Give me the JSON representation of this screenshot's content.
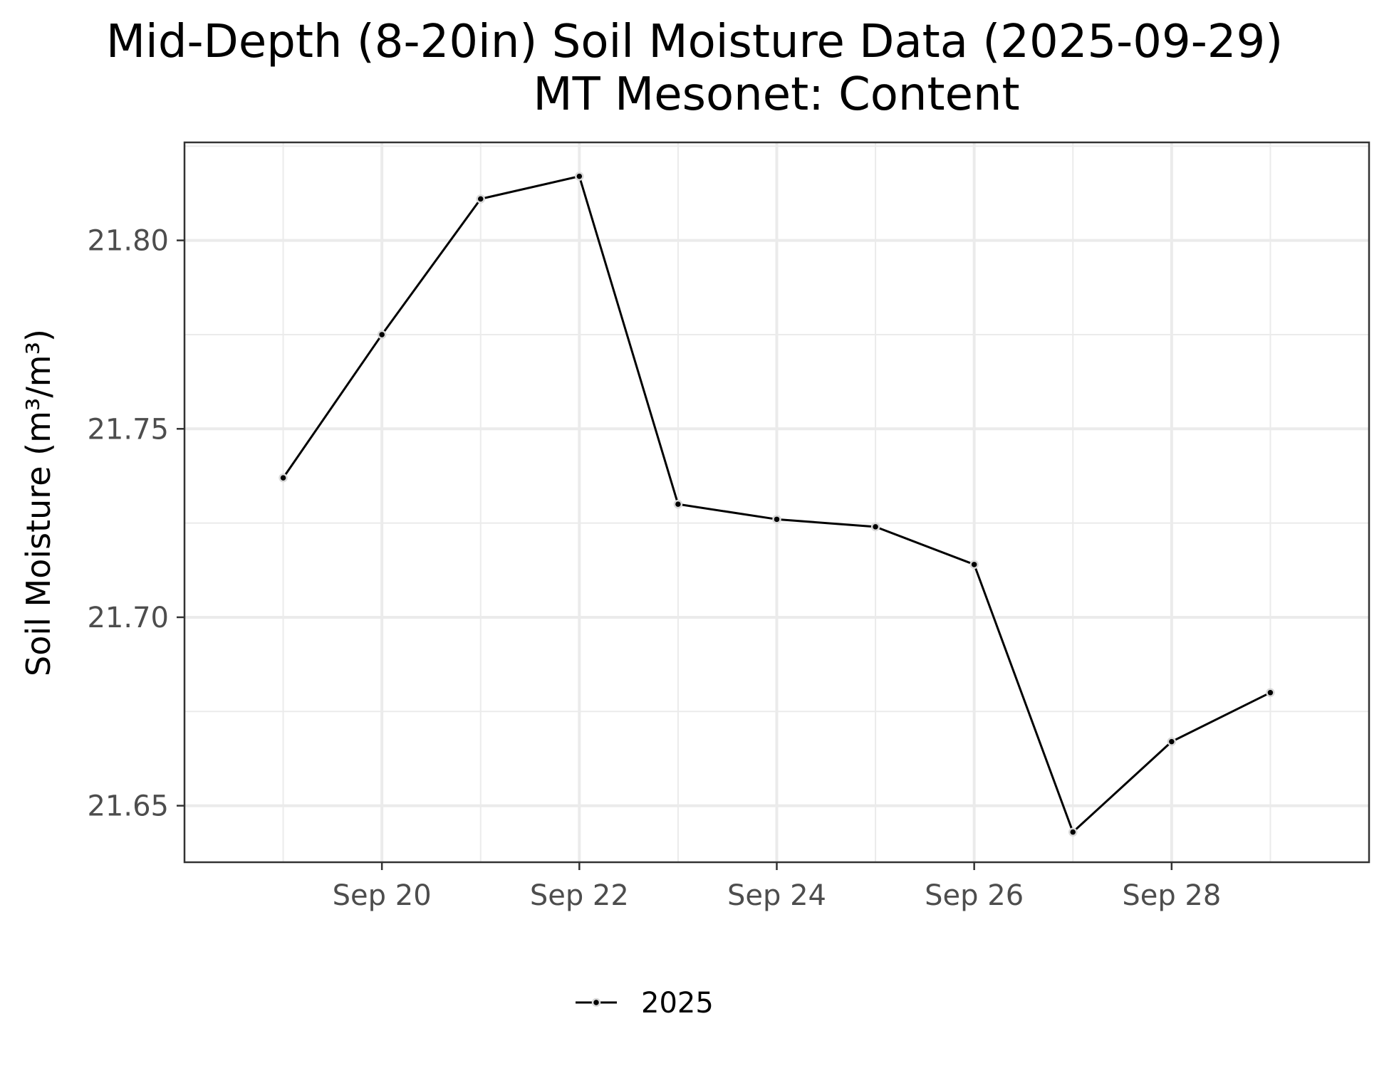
{
  "chart_data": {
    "type": "line",
    "title": "Mid-Depth (8-20in) Soil Moisture Data (2025-09-29)",
    "subtitle": "MT Mesonet: Content",
    "xlabel": "",
    "ylabel": "Soil Moisture (m³/m³)",
    "x_tick_labels": [
      "Sep 20",
      "Sep 22",
      "Sep 24",
      "Sep 26",
      "Sep 28"
    ],
    "y_tick_labels": [
      "21.65",
      "21.70",
      "21.75",
      "21.80"
    ],
    "y_ticks": [
      21.65,
      21.7,
      21.75,
      21.8
    ],
    "xlim": [
      "2025-09-18",
      "2025-09-30"
    ],
    "ylim": [
      21.635,
      21.826
    ],
    "grid": true,
    "legend_position": "bottom",
    "series": [
      {
        "name": "2025",
        "color": "#000000",
        "x": [
          "2025-09-19",
          "2025-09-20",
          "2025-09-21",
          "2025-09-22",
          "2025-09-23",
          "2025-09-24",
          "2025-09-25",
          "2025-09-26",
          "2025-09-27",
          "2025-09-28",
          "2025-09-29"
        ],
        "values": [
          21.737,
          21.775,
          21.811,
          21.817,
          21.73,
          21.726,
          21.724,
          21.714,
          21.643,
          21.667,
          21.68
        ]
      }
    ]
  }
}
